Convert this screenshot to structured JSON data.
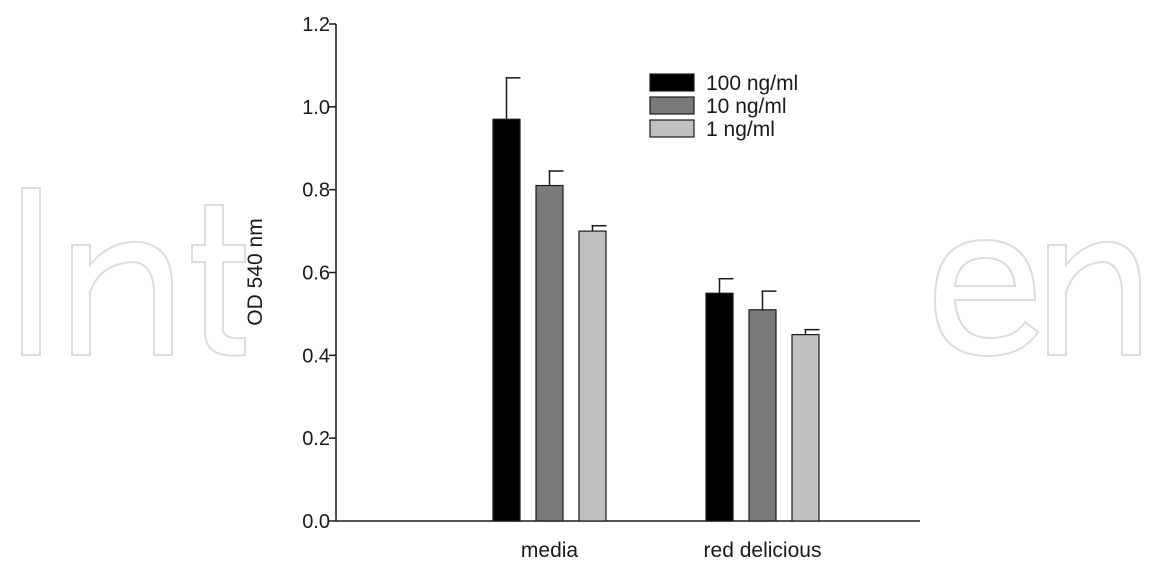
{
  "chart_data": {
    "type": "bar",
    "title": "",
    "xlabel": "",
    "ylabel": "OD 540 nm",
    "ylim": [
      0,
      1.2
    ],
    "yticks": [
      "0.0",
      "0.2",
      "0.4",
      "0.6",
      "0.8",
      "1.0",
      "1.2"
    ],
    "categories": [
      "media",
      "red delicious"
    ],
    "series": [
      {
        "name": "100 ng/ml",
        "color": "#000000",
        "values": [
          0.97,
          0.55
        ],
        "errors": [
          0.1,
          0.035
        ]
      },
      {
        "name": "10 ng/ml",
        "color": "#7a7a7a",
        "values": [
          0.81,
          0.51
        ],
        "errors": [
          0.035,
          0.045
        ]
      },
      {
        "name": "1 ng/ml",
        "color": "#c0c0c0",
        "values": [
          0.7,
          0.45
        ],
        "errors": [
          0.013,
          0.012
        ]
      }
    ],
    "legend_position": "top-right",
    "grid": false,
    "error_bars": true
  }
}
